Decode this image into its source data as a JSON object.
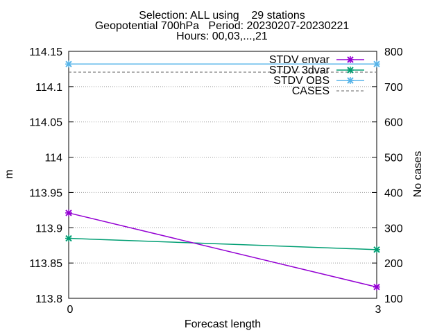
{
  "chart_data": {
    "type": "line",
    "title_lines": [
      "Selection: ALL using    29 stations",
      "Geopotential 700hPa   Period: 20230207-20230221",
      "Hours: 00,03,...,21"
    ],
    "xlabel": "Forecast length",
    "ylabel": "m",
    "y2label": "No cases",
    "x": [
      0,
      3
    ],
    "x_ticks": [
      0,
      3
    ],
    "x_tick_labels": [
      "0",
      "3"
    ],
    "xlim": [
      0,
      3
    ],
    "ylim": [
      113.8,
      114.15
    ],
    "y_ticks": [
      113.8,
      113.85,
      113.9,
      113.95,
      114,
      114.05,
      114.1,
      114.15
    ],
    "y_tick_labels": [
      "113.8",
      "113.85",
      "113.9",
      "113.95",
      "114",
      "114.05",
      "114.1",
      "114.15"
    ],
    "y2lim": [
      100,
      800
    ],
    "y2_ticks": [
      100,
      200,
      300,
      400,
      500,
      600,
      700,
      800
    ],
    "y2_tick_labels": [
      "100",
      "200",
      "300",
      "400",
      "500",
      "600",
      "700",
      "800"
    ],
    "grid": true,
    "legend_position": "top-right",
    "series": [
      {
        "name": "STDV envar",
        "axis": "y",
        "values": [
          113.921,
          113.816
        ],
        "color": "#9400d3",
        "style": "solid",
        "marker": "x"
      },
      {
        "name": "STDV 3dvar",
        "axis": "y",
        "values": [
          113.885,
          113.869
        ],
        "color": "#009e73",
        "style": "solid",
        "marker": "x"
      },
      {
        "name": "STDV OBS",
        "axis": "y",
        "values": [
          114.132,
          114.132
        ],
        "color": "#56b4e9",
        "style": "solid",
        "marker": "x"
      },
      {
        "name": "CASES",
        "axis": "y2",
        "values": [
          741,
          741
        ],
        "color": "#808080",
        "style": "dashed",
        "marker": "none"
      }
    ]
  }
}
